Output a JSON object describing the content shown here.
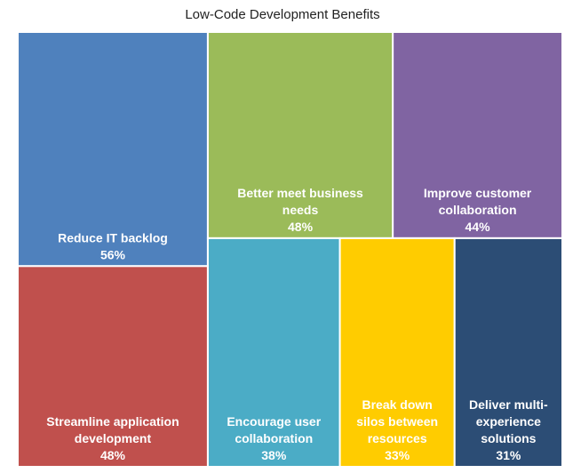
{
  "chart_data": {
    "type": "treemap",
    "title": "Low-Code Development Benefits",
    "unit": "%",
    "items": [
      {
        "name": "Reduce IT backlog",
        "lines": [
          "Reduce IT backlog"
        ],
        "value": 56,
        "label": "56%",
        "color": "#4F81BD"
      },
      {
        "name": "Streamline application development",
        "lines": [
          "Streamline application",
          "development"
        ],
        "value": 48,
        "label": "48%",
        "color": "#C0504D"
      },
      {
        "name": "Better meet business needs",
        "lines": [
          "Better meet business",
          "needs"
        ],
        "value": 48,
        "label": "48%",
        "color": "#9BBB59"
      },
      {
        "name": "Improve customer collaboration",
        "lines": [
          "Improve customer",
          "collaboration"
        ],
        "value": 44,
        "label": "44%",
        "color": "#8064A2"
      },
      {
        "name": "Encourage user collaboration",
        "lines": [
          "Encourage user",
          "collaboration"
        ],
        "value": 38,
        "label": "38%",
        "color": "#4BACC6"
      },
      {
        "name": "Break down silos between resources",
        "lines": [
          "Break down",
          "silos between",
          "resources"
        ],
        "value": 33,
        "label": "33%",
        "color": "#FFCC00"
      },
      {
        "name": "Deliver multi-experience solutions",
        "lines": [
          "Deliver multi-",
          "experience",
          "solutions"
        ],
        "value": 31,
        "label": "31%",
        "color": "#2C4D75"
      }
    ]
  }
}
